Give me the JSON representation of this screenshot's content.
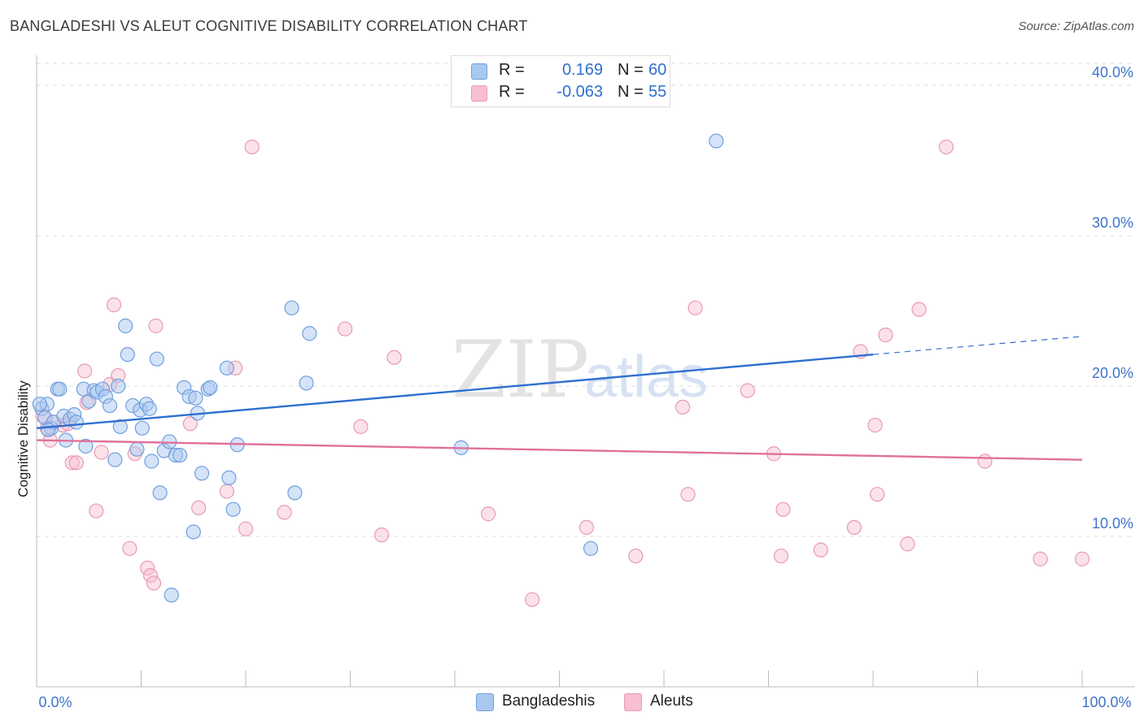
{
  "header": {
    "title": "BANGLADESHI VS ALEUT COGNITIVE DISABILITY CORRELATION CHART",
    "source": "Source: ZipAtlas.com"
  },
  "legend": {
    "rows": [
      {
        "r_label": "R =",
        "r_value": "0.169",
        "n_label": "N =",
        "n_value": "60"
      },
      {
        "r_label": "R =",
        "r_value": "-0.063",
        "n_label": "N =",
        "n_value": "55"
      }
    ]
  },
  "bottom_legend": {
    "series1": "Bangladeshis",
    "series2": "Aleuts"
  },
  "watermark": {
    "zip": "ZIP",
    "atlas": "atlas"
  },
  "colors": {
    "blue_fill": "#a9c8f0",
    "blue_stroke": "#6f9fde",
    "blue_line": "#2f6fd0",
    "pink_fill": "#f7bfd0",
    "pink_stroke": "#e99ab4",
    "pink_line": "#e0709a",
    "tick_text": "#3d74c9",
    "grid": "#dcdcdc"
  },
  "chart_data": {
    "type": "scatter",
    "title": "BANGLADESHI VS ALEUT COGNITIVE DISABILITY CORRELATION CHART",
    "xlabel": "",
    "ylabel": "Cognitive Disability",
    "xlim": [
      0,
      100
    ],
    "ylim": [
      0,
      42
    ],
    "x_tick_labels": [
      "0.0%",
      "100.0%"
    ],
    "y_ticks": [
      10,
      20,
      30,
      40
    ],
    "y_tick_labels": [
      "10.0%",
      "20.0%",
      "30.0%",
      "40.0%"
    ],
    "grid": true,
    "legend_position": "top-center",
    "series": [
      {
        "name": "Bangladeshis",
        "r": 0.169,
        "n": 60,
        "trend": {
          "x0": 0,
          "y0": 17.2,
          "x1": 80,
          "y1": 22.1,
          "dash_x_end": 100,
          "dash_y_end": 23.3
        },
        "points": [
          [
            0.5,
            18.5
          ],
          [
            0.8,
            17.9
          ],
          [
            1.0,
            18.8
          ],
          [
            1.4,
            17.2
          ],
          [
            1.6,
            17.6
          ],
          [
            2.0,
            19.8
          ],
          [
            2.2,
            19.8
          ],
          [
            2.6,
            18.0
          ],
          [
            2.8,
            16.4
          ],
          [
            3.2,
            17.8
          ],
          [
            3.6,
            18.1
          ],
          [
            3.8,
            17.6
          ],
          [
            4.5,
            19.8
          ],
          [
            4.7,
            16.0
          ],
          [
            5.0,
            19.0
          ],
          [
            5.5,
            19.7
          ],
          [
            5.8,
            19.6
          ],
          [
            6.3,
            19.8
          ],
          [
            6.6,
            19.3
          ],
          [
            7.0,
            18.7
          ],
          [
            7.5,
            15.1
          ],
          [
            7.8,
            20.0
          ],
          [
            8.0,
            17.3
          ],
          [
            8.5,
            24.0
          ],
          [
            8.7,
            22.1
          ],
          [
            9.2,
            18.7
          ],
          [
            9.6,
            15.8
          ],
          [
            9.9,
            18.4
          ],
          [
            10.1,
            17.2
          ],
          [
            10.5,
            18.8
          ],
          [
            10.8,
            18.5
          ],
          [
            11.0,
            15.0
          ],
          [
            11.5,
            21.8
          ],
          [
            11.8,
            12.9
          ],
          [
            12.2,
            15.7
          ],
          [
            12.7,
            16.3
          ],
          [
            12.9,
            6.1
          ],
          [
            13.3,
            15.4
          ],
          [
            13.7,
            15.4
          ],
          [
            14.1,
            19.9
          ],
          [
            14.6,
            19.3
          ],
          [
            15.0,
            10.3
          ],
          [
            15.2,
            19.2
          ],
          [
            15.4,
            18.2
          ],
          [
            15.8,
            14.2
          ],
          [
            16.4,
            19.8
          ],
          [
            16.6,
            19.9
          ],
          [
            18.2,
            21.2
          ],
          [
            18.4,
            13.9
          ],
          [
            18.8,
            11.8
          ],
          [
            19.2,
            16.1
          ],
          [
            24.4,
            25.2
          ],
          [
            24.7,
            12.9
          ],
          [
            25.8,
            20.2
          ],
          [
            26.1,
            23.5
          ],
          [
            40.6,
            15.9
          ],
          [
            53.0,
            9.2
          ],
          [
            65.0,
            36.3
          ],
          [
            0.3,
            18.8
          ],
          [
            1.1,
            17.1
          ]
        ]
      },
      {
        "name": "Aleuts",
        "r": -0.063,
        "n": 55,
        "trend": {
          "x0": 0,
          "y0": 16.4,
          "x1": 100,
          "y1": 15.1
        },
        "points": [
          [
            0.6,
            18.0
          ],
          [
            1.0,
            17.2
          ],
          [
            1.3,
            16.4
          ],
          [
            2.5,
            17.4
          ],
          [
            3.0,
            17.5
          ],
          [
            3.4,
            14.9
          ],
          [
            3.8,
            14.9
          ],
          [
            4.6,
            21.0
          ],
          [
            4.8,
            18.9
          ],
          [
            5.7,
            11.7
          ],
          [
            6.2,
            15.6
          ],
          [
            7.0,
            20.1
          ],
          [
            7.4,
            25.4
          ],
          [
            7.8,
            20.7
          ],
          [
            8.9,
            9.2
          ],
          [
            9.4,
            15.5
          ],
          [
            10.6,
            7.9
          ],
          [
            10.9,
            7.4
          ],
          [
            11.2,
            6.9
          ],
          [
            11.4,
            24.0
          ],
          [
            14.7,
            17.5
          ],
          [
            15.5,
            11.9
          ],
          [
            18.2,
            13.0
          ],
          [
            19.0,
            21.2
          ],
          [
            20.0,
            10.5
          ],
          [
            20.6,
            35.9
          ],
          [
            23.7,
            11.6
          ],
          [
            29.5,
            23.8
          ],
          [
            31.0,
            17.3
          ],
          [
            33.0,
            10.1
          ],
          [
            34.2,
            21.9
          ],
          [
            43.2,
            11.5
          ],
          [
            47.4,
            5.8
          ],
          [
            52.6,
            10.6
          ],
          [
            57.3,
            8.7
          ],
          [
            61.8,
            18.6
          ],
          [
            62.3,
            12.8
          ],
          [
            63.0,
            25.2
          ],
          [
            68.0,
            19.7
          ],
          [
            70.5,
            15.5
          ],
          [
            71.2,
            8.7
          ],
          [
            71.4,
            11.8
          ],
          [
            75.0,
            9.1
          ],
          [
            78.2,
            10.6
          ],
          [
            78.8,
            22.3
          ],
          [
            80.2,
            17.4
          ],
          [
            80.4,
            12.8
          ],
          [
            81.2,
            23.4
          ],
          [
            83.3,
            9.5
          ],
          [
            84.4,
            25.1
          ],
          [
            87.0,
            35.9
          ],
          [
            90.7,
            15.0
          ],
          [
            96.0,
            8.5
          ],
          [
            100.0,
            8.5
          ],
          [
            1.6,
            17.6
          ]
        ]
      }
    ]
  }
}
